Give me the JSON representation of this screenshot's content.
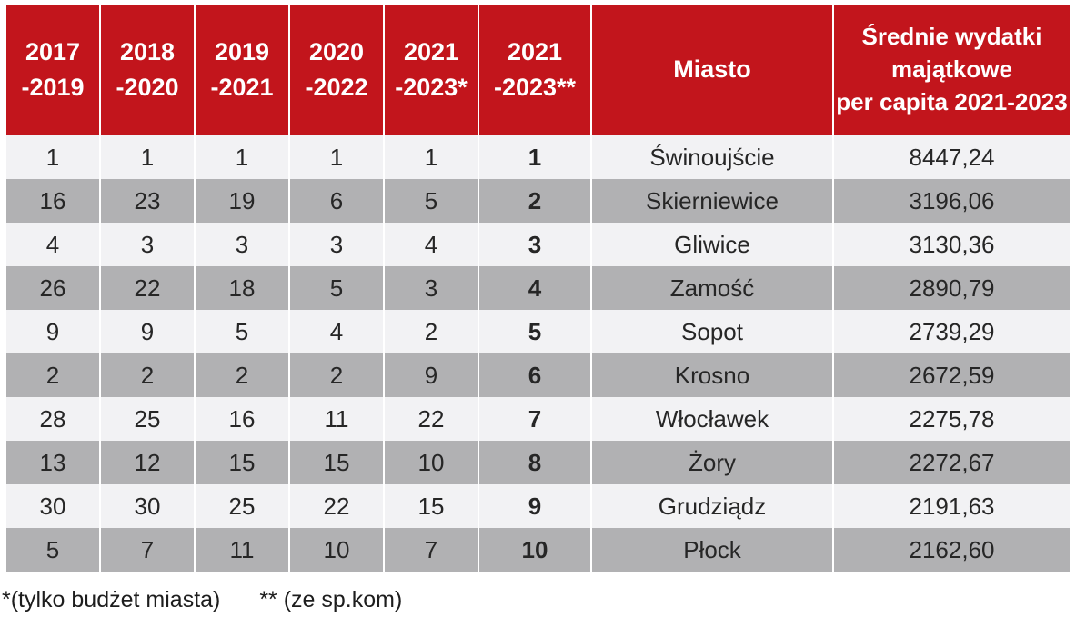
{
  "colors": {
    "header_red": "#c2151c",
    "row_gray": "#b1b1b3",
    "row_light": "#f2f2f4"
  },
  "table": {
    "columns": [
      {
        "line1": "2017",
        "line2": "-2019"
      },
      {
        "line1": "2018",
        "line2": "-2020"
      },
      {
        "line1": "2019",
        "line2": "-2021"
      },
      {
        "line1": "2020",
        "line2": "-2022"
      },
      {
        "line1": "2021",
        "line2": "-2023*"
      },
      {
        "line1": "2021",
        "line2": "-2023**"
      },
      {
        "label": "Miasto"
      },
      {
        "lines": [
          "Średnie wydatki",
          "majątkowe",
          "per capita 2021-2023"
        ]
      }
    ],
    "rows": [
      {
        "ranks": [
          "1",
          "1",
          "1",
          "1",
          "1",
          "1"
        ],
        "city": "Świnoujście",
        "spending": "8447,24"
      },
      {
        "ranks": [
          "16",
          "23",
          "19",
          "6",
          "5",
          "2"
        ],
        "city": "Skierniewice",
        "spending": "3196,06"
      },
      {
        "ranks": [
          "4",
          "3",
          "3",
          "3",
          "4",
          "3"
        ],
        "city": "Gliwice",
        "spending": "3130,36"
      },
      {
        "ranks": [
          "26",
          "22",
          "18",
          "5",
          "3",
          "4"
        ],
        "city": "Zamość",
        "spending": "2890,79"
      },
      {
        "ranks": [
          "9",
          "9",
          "5",
          "4",
          "2",
          "5"
        ],
        "city": "Sopot",
        "spending": "2739,29"
      },
      {
        "ranks": [
          "2",
          "2",
          "2",
          "2",
          "9",
          "6"
        ],
        "city": "Krosno",
        "spending": "2672,59"
      },
      {
        "ranks": [
          "28",
          "25",
          "16",
          "11",
          "22",
          "7"
        ],
        "city": "Włocławek",
        "spending": "2275,78"
      },
      {
        "ranks": [
          "13",
          "12",
          "15",
          "15",
          "10",
          "8"
        ],
        "city": "Żory",
        "spending": "2272,67"
      },
      {
        "ranks": [
          "30",
          "30",
          "25",
          "22",
          "15",
          "9"
        ],
        "city": "Grudziądz",
        "spending": "2191,63"
      },
      {
        "ranks": [
          "5",
          "7",
          "11",
          "10",
          "7",
          "10"
        ],
        "city": "Płock",
        "spending": "2162,60"
      }
    ]
  },
  "footnotes": {
    "budget_only": "*(tylko budżet miasta)",
    "with_spkom": "** (ze sp.kom)"
  }
}
